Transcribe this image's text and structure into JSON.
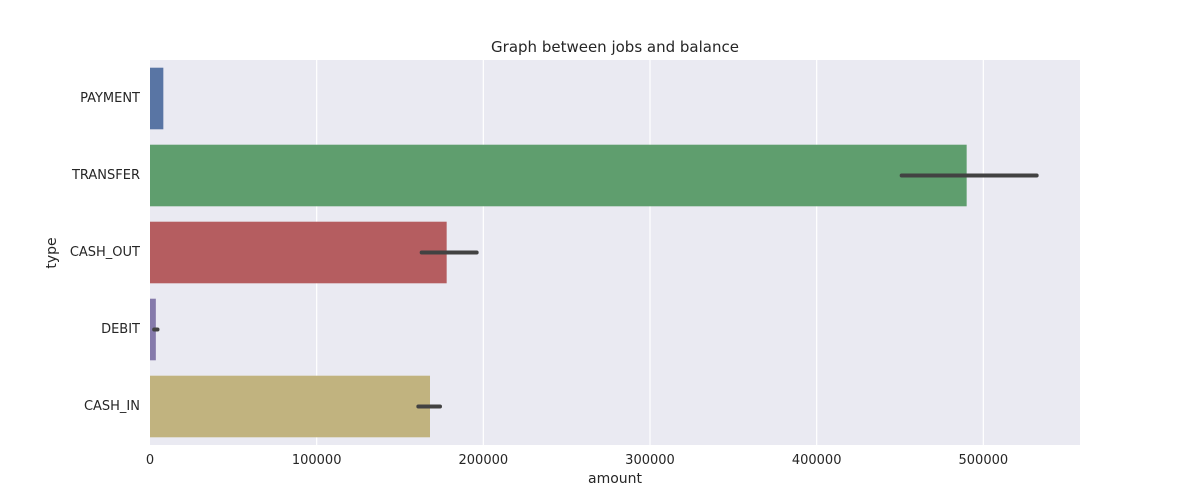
{
  "chart_data": {
    "type": "bar",
    "orientation": "horizontal",
    "title": "Graph between jobs and balance",
    "xlabel": "amount",
    "ylabel": "type",
    "categories": [
      "PAYMENT",
      "TRANSFER",
      "CASH_OUT",
      "DEBIT",
      "CASH_IN"
    ],
    "values": [
      8000,
      490000,
      178000,
      3500,
      168000
    ],
    "error_bars": [
      [
        null,
        null
      ],
      [
        451000,
        532000
      ],
      [
        163000,
        196000
      ],
      [
        2500,
        4500
      ],
      [
        161000,
        174000
      ]
    ],
    "colors": [
      "#5975a4",
      "#5f9e6e",
      "#b55d60",
      "#857aab",
      "#c1b37f"
    ],
    "error_bar_color": "#424242",
    "xlim": [
      0,
      558000
    ],
    "xticks": [
      0,
      100000,
      200000,
      300000,
      400000,
      500000
    ],
    "xtick_labels": [
      "0",
      "100000",
      "200000",
      "300000",
      "400000",
      "500000"
    ],
    "grid": true,
    "background": "#eaeaf2",
    "grid_color": "#ffffff"
  }
}
